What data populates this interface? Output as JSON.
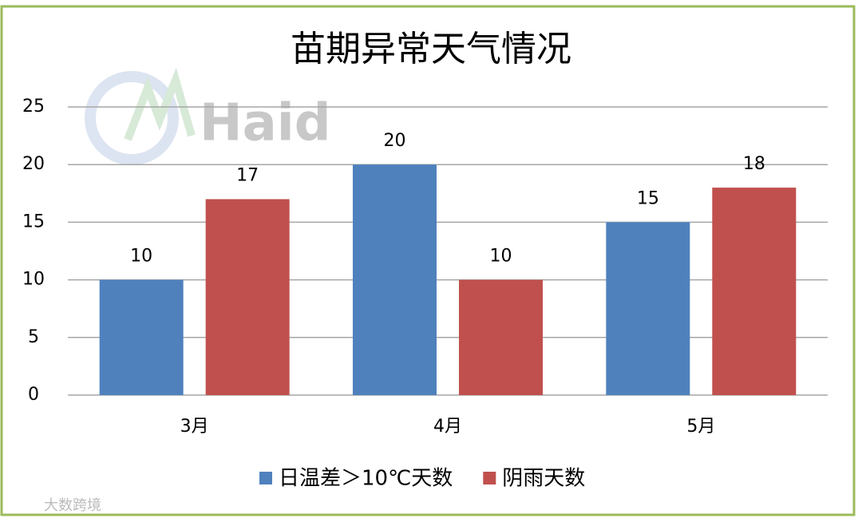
{
  "chart_data": {
    "type": "bar",
    "title": "苗期异常天气情况",
    "categories": [
      "3月",
      "4月",
      "5月"
    ],
    "series": [
      {
        "name": "日温差＞10℃天数",
        "color": "#4f81bd",
        "values": [
          10,
          20,
          15
        ]
      },
      {
        "name": "阴雨天数",
        "color": "#c0504d",
        "values": [
          17,
          10,
          18
        ]
      }
    ],
    "ylim": [
      0,
      25
    ],
    "yticks": [
      0,
      5,
      10,
      15,
      20,
      25
    ],
    "grid": true,
    "legend": "bottom",
    "watermarks": [
      "Haid",
      "大数跨境"
    ]
  }
}
